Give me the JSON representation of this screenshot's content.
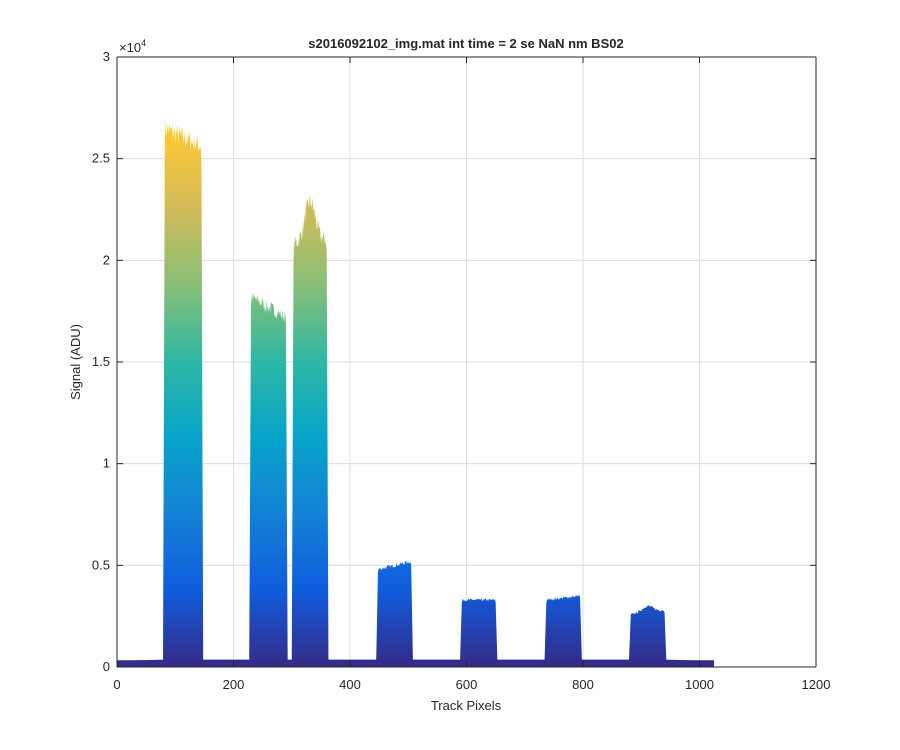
{
  "chart_data": {
    "type": "area",
    "title": "s2016092102_img.mat int time = 2 se  NaN nm BS02",
    "xlabel": "Track Pixels",
    "ylabel": "Signal (ADU)",
    "xlim": [
      0,
      1200
    ],
    "ylim": [
      0,
      30000
    ],
    "y_exponent_label": "×10",
    "y_exponent_power": "4",
    "xticks": [
      0,
      200,
      400,
      600,
      800,
      1000,
      1200
    ],
    "xtick_labels": [
      "0",
      "200",
      "400",
      "600",
      "800",
      "1000",
      "1200"
    ],
    "yticks": [
      0,
      5000,
      10000,
      15000,
      20000,
      25000,
      30000
    ],
    "ytick_labels": [
      "0",
      "0.5",
      "1",
      "1.5",
      "2",
      "2.5",
      "3"
    ],
    "grid": true,
    "colormap": "parula",
    "colormap_stops": [
      "#352a87",
      "#0f5cdd",
      "#1481d6",
      "#06a4ca",
      "#2eb7a4",
      "#87bf77",
      "#d1bb59",
      "#fec832",
      "#f9fb0e"
    ],
    "baseline": 300,
    "x_end": 1025,
    "peaks": [
      {
        "x_start": 82,
        "x_end": 145,
        "top_left": 26500,
        "top_right": 25600
      },
      {
        "x_start": 230,
        "x_end": 290,
        "top_left": 18200,
        "top_right": 17200
      },
      {
        "x_start": 303,
        "x_end": 360,
        "top_left": 20800,
        "top_right": 21000,
        "max": 23000
      },
      {
        "x_start": 448,
        "x_end": 505,
        "top_left": 4800,
        "top_right": 5200
      },
      {
        "x_start": 592,
        "x_end": 650,
        "top_left": 3300,
        "top_right": 3300
      },
      {
        "x_start": 737,
        "x_end": 795,
        "top_left": 3300,
        "top_right": 3500
      },
      {
        "x_start": 882,
        "x_end": 940,
        "top_left": 2600,
        "top_right": 2800,
        "max": 3100
      }
    ]
  }
}
